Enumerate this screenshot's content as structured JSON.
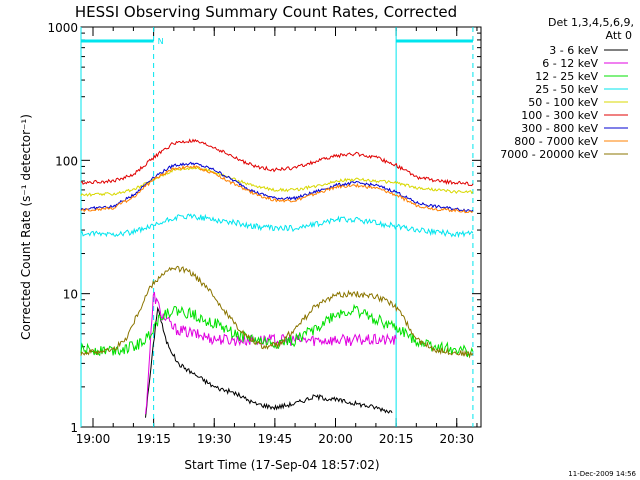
{
  "chart_data": {
    "type": "line",
    "title": "HESSI Observing Summary Count Rates, Corrected",
    "xlabel": "Start Time (17-Sep-04 18:57:02)",
    "ylabel": "Corrected Count Rate (s⁻¹ detector⁻¹)",
    "y_scale": "log",
    "ylim": [
      1,
      1000
    ],
    "xlim": [
      "18:57:02",
      "20:36:00"
    ],
    "x_ticks": [
      "19:00",
      "19:15",
      "19:30",
      "19:45",
      "20:00",
      "20:15",
      "20:30"
    ],
    "y_ticks": [
      "1",
      "10",
      "100",
      "1000"
    ],
    "legend_header": [
      "Det 1,3,4,5,6,9,",
      "Att 0"
    ],
    "legend_position": "right",
    "footer_date": "11-Dec-2009 14:56",
    "night_marker_label": "N",
    "markers": {
      "solid_vertical": [
        "18:57:02",
        "20:15"
      ],
      "dashed_vertical": [
        "19:15",
        "20:34"
      ],
      "night_intervals": [
        [
          "18:57:02",
          "19:15"
        ],
        [
          "20:15",
          "20:34"
        ]
      ],
      "marker_color": "#00e5ee"
    },
    "series": [
      {
        "name": "3 - 6 keV",
        "color": "#000000",
        "x": [
          "19:13",
          "19:16",
          "19:18",
          "19:21",
          "19:25",
          "19:30",
          "19:35",
          "19:40",
          "19:45",
          "19:50",
          "19:55",
          "20:00",
          "20:05",
          "20:10",
          "20:14"
        ],
        "values": [
          1.2,
          8,
          4.5,
          3,
          2.5,
          2,
          1.8,
          1.5,
          1.4,
          1.5,
          1.7,
          1.6,
          1.5,
          1.4,
          1.3
        ]
      },
      {
        "name": "6 - 12 keV",
        "color": "#e000e0",
        "x": [
          "19:13",
          "19:15",
          "19:17",
          "19:20",
          "19:25",
          "19:30",
          "19:35",
          "19:40",
          "19:45",
          "19:50",
          "19:55",
          "20:00",
          "20:05",
          "20:10",
          "20:15"
        ],
        "values": [
          1.2,
          10,
          7,
          5.5,
          5,
          4.6,
          4.5,
          4.5,
          4.5,
          4.5,
          4.5,
          4.5,
          4.5,
          4.5,
          4.5
        ]
      },
      {
        "name": "12 - 25 keV",
        "color": "#00e000",
        "x": [
          "18:57",
          "19:05",
          "19:10",
          "19:13",
          "19:17",
          "19:20",
          "19:25",
          "19:30",
          "19:35",
          "19:40",
          "19:45",
          "19:50",
          "19:55",
          "20:00",
          "20:05",
          "20:10",
          "20:15",
          "20:20",
          "20:25",
          "20:30",
          "20:34"
        ],
        "values": [
          3.8,
          3.8,
          4,
          4.5,
          7,
          7.5,
          7,
          6,
          5,
          4.5,
          4.2,
          4.5,
          5.5,
          7,
          7.5,
          6.5,
          5.5,
          4.5,
          4,
          3.8,
          3.6
        ]
      },
      {
        "name": "25 - 50 keV",
        "color": "#00e5ee",
        "x": [
          "18:57",
          "19:05",
          "19:10",
          "19:15",
          "19:20",
          "19:25",
          "19:30",
          "19:35",
          "19:40",
          "19:45",
          "19:50",
          "19:55",
          "20:00",
          "20:05",
          "20:10",
          "20:15",
          "20:20",
          "20:25",
          "20:30",
          "20:34"
        ],
        "values": [
          28,
          28,
          29,
          32,
          37,
          38,
          36,
          34,
          32,
          31,
          31,
          33,
          36,
          36,
          34,
          32,
          30,
          29,
          28,
          28
        ]
      },
      {
        "name": "50 - 100 keV",
        "color": "#d8d800",
        "x": [
          "18:57",
          "19:05",
          "19:10",
          "19:15",
          "19:20",
          "19:25",
          "19:30",
          "19:35",
          "19:40",
          "19:45",
          "19:50",
          "19:55",
          "20:00",
          "20:05",
          "20:10",
          "20:15",
          "20:20",
          "20:25",
          "20:30",
          "20:34"
        ],
        "values": [
          55,
          56,
          60,
          72,
          85,
          88,
          82,
          72,
          64,
          60,
          60,
          64,
          70,
          72,
          70,
          68,
          62,
          60,
          58,
          58
        ]
      },
      {
        "name": "100 - 300 keV",
        "color": "#e00000",
        "x": [
          "18:57",
          "19:05",
          "19:10",
          "19:15",
          "19:20",
          "19:25",
          "19:30",
          "19:35",
          "19:40",
          "19:45",
          "19:50",
          "19:55",
          "20:00",
          "20:05",
          "20:10",
          "20:15",
          "20:20",
          "20:25",
          "20:30",
          "20:34"
        ],
        "values": [
          68,
          70,
          78,
          105,
          135,
          140,
          125,
          105,
          90,
          85,
          88,
          98,
          108,
          112,
          105,
          92,
          75,
          70,
          68,
          66
        ]
      },
      {
        "name": "300 - 800 keV",
        "color": "#0000d0",
        "x": [
          "18:57",
          "19:05",
          "19:10",
          "19:15",
          "19:20",
          "19:25",
          "19:30",
          "19:35",
          "19:40",
          "19:45",
          "19:50",
          "19:55",
          "20:00",
          "20:05",
          "20:10",
          "20:15",
          "20:20",
          "20:25",
          "20:30",
          "20:34"
        ],
        "values": [
          43,
          45,
          55,
          75,
          92,
          95,
          85,
          70,
          58,
          52,
          52,
          58,
          65,
          68,
          65,
          58,
          48,
          45,
          43,
          42
        ]
      },
      {
        "name": "800 - 7000 keV",
        "color": "#ff8000",
        "x": [
          "18:57",
          "19:05",
          "19:10",
          "19:15",
          "19:20",
          "19:25",
          "19:30",
          "19:35",
          "19:40",
          "19:45",
          "19:50",
          "19:55",
          "20:00",
          "20:05",
          "20:10",
          "20:15",
          "20:20",
          "20:25",
          "20:30",
          "20:34"
        ],
        "values": [
          42,
          44,
          53,
          72,
          87,
          90,
          80,
          66,
          56,
          50,
          50,
          56,
          63,
          65,
          62,
          55,
          46,
          43,
          42,
          41
        ]
      },
      {
        "name": "7000 - 20000 keV",
        "color": "#8b7500",
        "x": [
          "18:57",
          "19:05",
          "19:08",
          "19:11",
          "19:14",
          "19:17",
          "19:20",
          "19:23",
          "19:26",
          "19:30",
          "19:34",
          "19:38",
          "19:42",
          "19:46",
          "19:50",
          "19:55",
          "20:00",
          "20:05",
          "20:10",
          "20:14",
          "20:17",
          "20:20",
          "20:25",
          "20:30",
          "20:34"
        ],
        "values": [
          3.6,
          3.8,
          4.5,
          7,
          11,
          14,
          15.5,
          15,
          13,
          9.5,
          6.5,
          4.8,
          4,
          4.2,
          5.5,
          8,
          9.8,
          10,
          9.5,
          8.5,
          6.5,
          4.5,
          3.8,
          3.6,
          3.5
        ]
      }
    ]
  }
}
